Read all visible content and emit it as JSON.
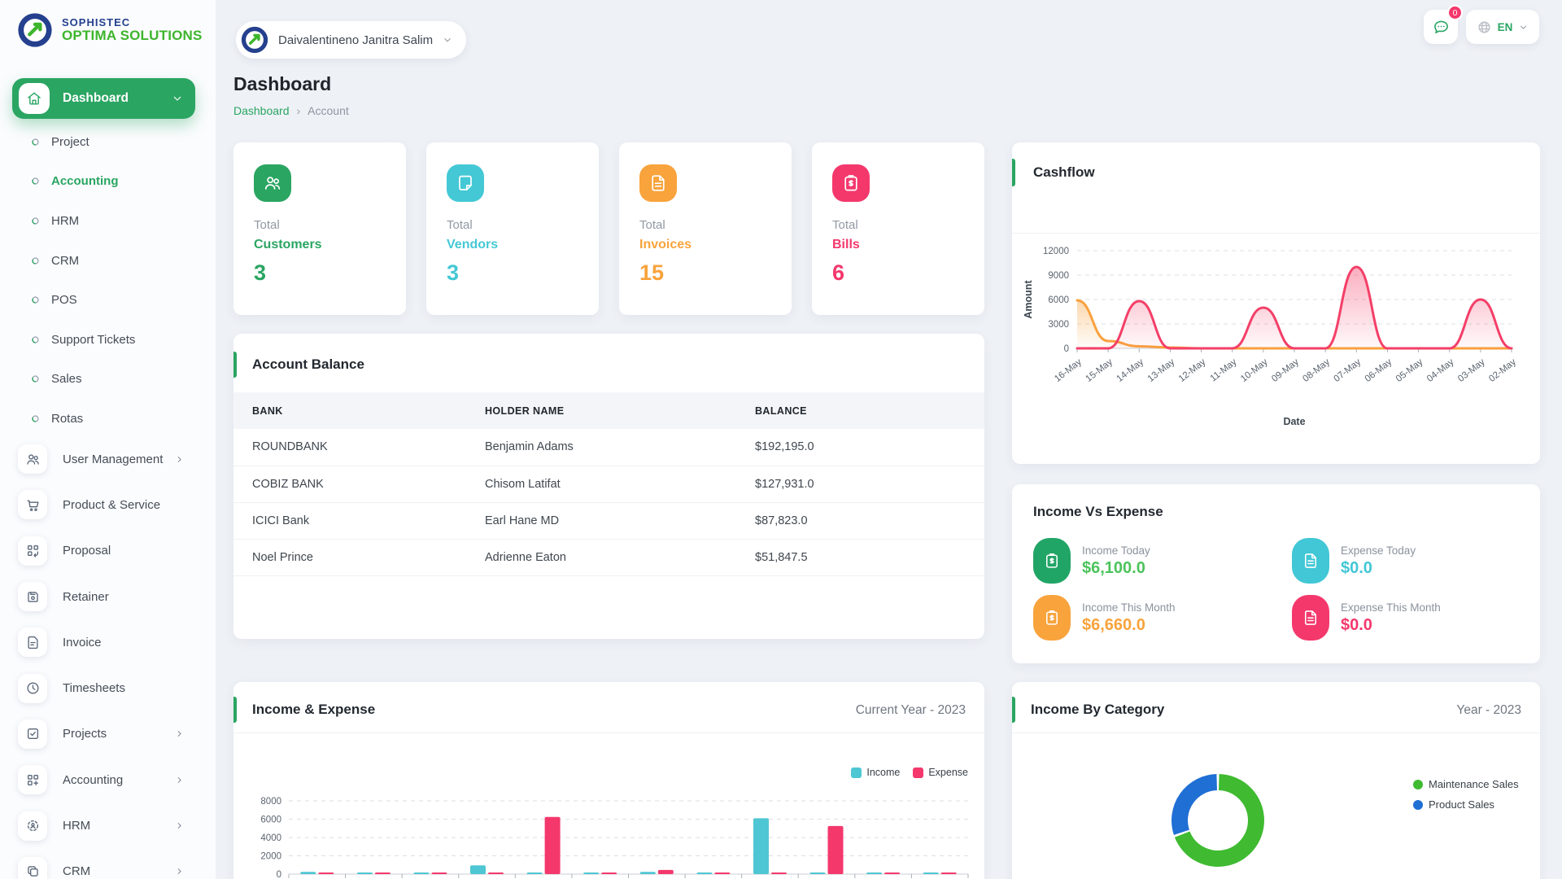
{
  "brand": {
    "name_top": "SOPHISTEC",
    "name_bottom": "OPTIMA SOLUTIONS",
    "colors": {
      "navy": "#24408e",
      "green": "#3db52c"
    }
  },
  "header": {
    "user": {
      "name": "Daivalentineno Janitra Salim"
    },
    "messages": {
      "badge": "0"
    },
    "language": {
      "code": "EN"
    }
  },
  "page": {
    "title": "Dashboard",
    "breadcrumb": {
      "link": "Dashboard",
      "separator": "›",
      "current": "Account"
    }
  },
  "sidebar": {
    "active_item": {
      "label": "Dashboard"
    },
    "dashboard_children": [
      {
        "label": "Project",
        "active": false
      },
      {
        "label": "Accounting",
        "active": true
      },
      {
        "label": "HRM",
        "active": false
      },
      {
        "label": "CRM",
        "active": false
      },
      {
        "label": "POS",
        "active": false
      },
      {
        "label": "Support Tickets",
        "active": false
      },
      {
        "label": "Sales",
        "active": false
      },
      {
        "label": "Rotas",
        "active": false
      }
    ],
    "modules": [
      {
        "label": "User Management",
        "icon": "users-icon",
        "has_children": true
      },
      {
        "label": "Product & Service",
        "icon": "cart-icon",
        "has_children": false
      },
      {
        "label": "Proposal",
        "icon": "proposal-icon",
        "has_children": false
      },
      {
        "label": "Retainer",
        "icon": "save-icon",
        "has_children": false
      },
      {
        "label": "Invoice",
        "icon": "file-text-icon",
        "has_children": false
      },
      {
        "label": "Timesheets",
        "icon": "clock-icon",
        "has_children": false
      },
      {
        "label": "Projects",
        "icon": "check-square-icon",
        "has_children": true
      },
      {
        "label": "Accounting",
        "icon": "grid-plus-icon",
        "has_children": true
      },
      {
        "label": "HRM",
        "icon": "user-scan-icon",
        "has_children": true
      },
      {
        "label": "CRM",
        "icon": "copy-icon",
        "has_children": true
      }
    ]
  },
  "stat_cards": [
    {
      "prefix": "Total",
      "label": "Customers",
      "value": "3",
      "color": "#2aa562",
      "icon": "users-icon"
    },
    {
      "prefix": "Total",
      "label": "Vendors",
      "value": "3",
      "color": "#44c8d5",
      "icon": "note-icon"
    },
    {
      "prefix": "Total",
      "label": "Invoices",
      "value": "15",
      "color": "#f8a33c",
      "icon": "file-lines-icon"
    },
    {
      "prefix": "Total",
      "label": "Bills",
      "value": "6",
      "color": "#f4386c",
      "icon": "clipboard-dollar-icon"
    }
  ],
  "account_balance": {
    "title": "Account Balance",
    "columns": [
      "BANK",
      "HOLDER NAME",
      "BALANCE"
    ],
    "rows": [
      [
        "ROUNDBANK",
        "Benjamin Adams",
        "$192,195.0"
      ],
      [
        "COBIZ BANK",
        "Chisom Latifat",
        "$127,931.0"
      ],
      [
        "ICICI Bank",
        "Earl Hane MD",
        "$87,823.0"
      ],
      [
        "Noel Prince",
        "Adrienne Eaton",
        "$51,847.5"
      ]
    ]
  },
  "income_vs_expense": {
    "title": "Income Vs Expense",
    "items": [
      {
        "label": "Income Today",
        "value": "$6,100.0",
        "color": "#4cc35b",
        "icon_bg": "#21a566",
        "icon": "clipboard-dollar-icon"
      },
      {
        "label": "Expense Today",
        "value": "$0.0",
        "color": "#41c7d6",
        "icon_bg": "#41c7d6",
        "icon": "file-lines-icon"
      },
      {
        "label": "Income This Month",
        "value": "$6,660.0",
        "color": "#f8a33c",
        "icon_bg": "#f8a33c",
        "icon": "clipboard-dollar-icon"
      },
      {
        "label": "Expense This Month",
        "value": "$0.0",
        "color": "#f4386c",
        "icon_bg": "#f4386c",
        "icon": "file-lines-icon"
      }
    ]
  },
  "chart_data": [
    {
      "type": "area",
      "title": "Cashflow",
      "xlabel": "Date",
      "ylabel": "Amount",
      "categories": [
        "16-May",
        "15-May",
        "14-May",
        "13-May",
        "12-May",
        "11-May",
        "10-May",
        "09-May",
        "08-May",
        "07-May",
        "06-May",
        "05-May",
        "04-May",
        "03-May",
        "02-May"
      ],
      "y_ticks": [
        0,
        3000,
        6000,
        9000,
        12000
      ],
      "ylim": [
        0,
        12000
      ],
      "grid": true,
      "legend": "none",
      "series": [
        {
          "name": "orange-series",
          "color": "#f9a13e",
          "values": [
            5900,
            900,
            250,
            100,
            0,
            0,
            0,
            0,
            0,
            0,
            0,
            0,
            0,
            0,
            0
          ]
        },
        {
          "name": "pink-series",
          "color": "#f43f68",
          "values": [
            0,
            0,
            5800,
            0,
            0,
            0,
            5000,
            0,
            0,
            10000,
            0,
            0,
            0,
            6000,
            0
          ]
        }
      ]
    },
    {
      "type": "bar",
      "title": "Income & Expense",
      "subtitle": "Current Year - 2023",
      "group_count": 12,
      "categories_note": "month labels are cut off at the bottom edge of the viewport",
      "y_ticks": [
        0,
        2000,
        4000,
        6000,
        8000
      ],
      "ylim": [
        0,
        8000
      ],
      "grid": true,
      "legend_position": "top-right",
      "series": [
        {
          "name": "Income",
          "color": "#4ec6d3",
          "values": [
            250,
            150,
            150,
            950,
            150,
            150,
            250,
            150,
            6100,
            150,
            150,
            120
          ]
        },
        {
          "name": "Expense",
          "color": "#f4386c",
          "values": [
            150,
            150,
            150,
            150,
            6250,
            150,
            450,
            150,
            150,
            5250,
            150,
            150
          ]
        }
      ]
    },
    {
      "type": "pie",
      "title": "Income By Category",
      "subtitle": "Year - 2023",
      "donut": true,
      "labels": [
        "Maintenance Sales",
        "Product Sales"
      ],
      "values_percent": [
        69.5,
        30.5
      ],
      "colors": [
        "#3fba31",
        "#1f6fd4"
      ],
      "legend_position": "right"
    }
  ]
}
